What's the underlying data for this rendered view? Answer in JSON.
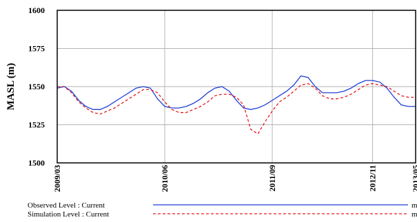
{
  "chart_data": {
    "type": "line",
    "ylabel": "MASL (m)",
    "ylim": [
      1500,
      1600
    ],
    "yticks": [
      "1600",
      "1575",
      "1550",
      "1525",
      "1500"
    ],
    "xlim": [
      "2009-03",
      "2013-05"
    ],
    "xticks": [
      "2009/03",
      "2010/06",
      "2011/09",
      "2012/11",
      "2013/05"
    ],
    "grid": true,
    "legend_position": "bottom",
    "x": [
      "2009-03",
      "2009-04",
      "2009-05",
      "2009-06",
      "2009-07",
      "2009-08",
      "2009-09",
      "2009-10",
      "2009-11",
      "2009-12",
      "2010-01",
      "2010-02",
      "2010-03",
      "2010-04",
      "2010-05",
      "2010-06",
      "2010-07",
      "2010-08",
      "2010-09",
      "2010-10",
      "2010-11",
      "2010-12",
      "2011-01",
      "2011-02",
      "2011-03",
      "2011-04",
      "2011-05",
      "2011-06",
      "2011-07",
      "2011-08",
      "2011-09",
      "2011-10",
      "2011-11",
      "2011-12",
      "2012-01",
      "2012-02",
      "2012-03",
      "2012-04",
      "2012-05",
      "2012-06",
      "2012-07",
      "2012-08",
      "2012-09",
      "2012-10",
      "2012-11",
      "2012-12",
      "2013-01",
      "2013-02",
      "2013-03",
      "2013-04",
      "2013-05"
    ],
    "series": [
      {
        "name": "Observed Level : Current",
        "unit": "m",
        "color": "#1f3fd6",
        "style": "solid",
        "values": [
          1549,
          1550,
          1547,
          1541,
          1537,
          1535,
          1535,
          1537,
          1540,
          1543,
          1546,
          1549,
          1550,
          1549,
          1542,
          1537,
          1536,
          1536,
          1537,
          1539,
          1542,
          1546,
          1549,
          1550,
          1547,
          1541,
          1536,
          1535,
          1536,
          1538,
          1541,
          1544,
          1547,
          1551,
          1557,
          1556,
          1550,
          1546,
          1546,
          1546,
          1547,
          1549,
          1552,
          1554,
          1554,
          1553,
          1549,
          1543,
          1538,
          1537,
          1537
        ]
      },
      {
        "name": "Simulation Level : Current",
        "unit": "m",
        "color": "#e8181c",
        "style": "dashed",
        "values": [
          1550,
          1550,
          1546,
          1540,
          1536,
          1533,
          1532,
          1534,
          1536,
          1539,
          1542,
          1545,
          1548,
          1548,
          1546,
          1540,
          1535,
          1533,
          1533,
          1535,
          1537,
          1540,
          1544,
          1545,
          1545,
          1543,
          1538,
          1522,
          1519,
          1527,
          1534,
          1540,
          1543,
          1547,
          1551,
          1552,
          1549,
          1544,
          1542,
          1542,
          1543,
          1545,
          1548,
          1551,
          1552,
          1551,
          1550,
          1547,
          1544,
          1543,
          1543
        ]
      }
    ]
  }
}
